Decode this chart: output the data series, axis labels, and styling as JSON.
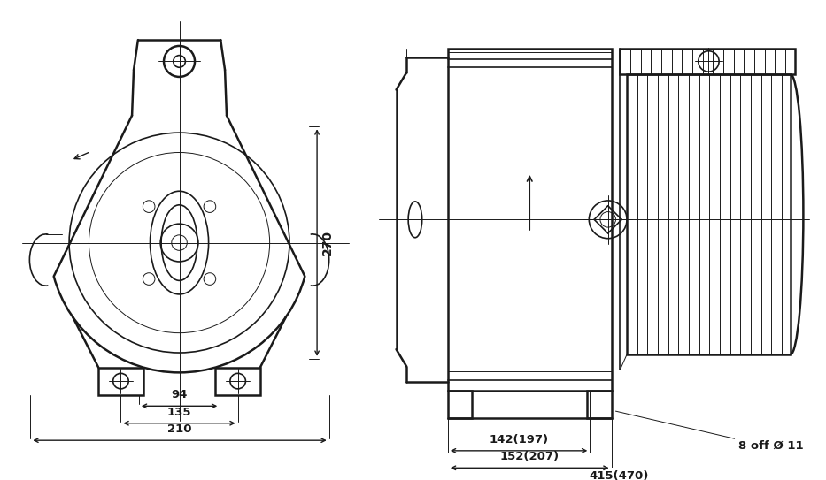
{
  "bg_color": "#ffffff",
  "line_color": "#1a1a1a",
  "fig_width": 9.33,
  "fig_height": 5.43,
  "dpi": 100,
  "dim_270": "270",
  "dim_94": "94",
  "dim_135": "135",
  "dim_210": "210",
  "dim_142": "142(197)",
  "dim_152": "152(207)",
  "dim_415": "415(470)",
  "dim_bolt": "8 off Ø 11"
}
